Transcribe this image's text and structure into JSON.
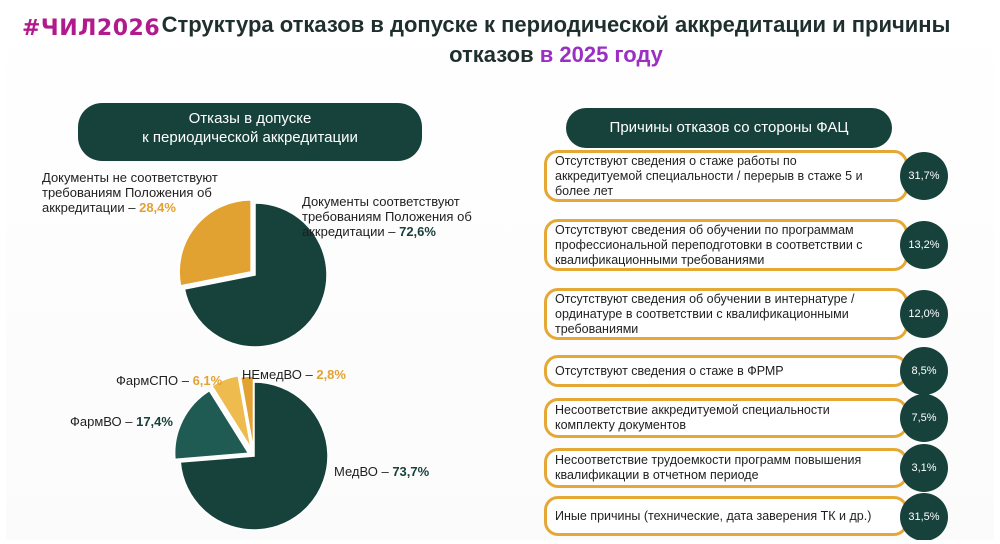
{
  "brand": "#ЧИЛ2026",
  "title": {
    "line1": "Структура отказов в допуске к периодической аккредитации и причины",
    "line2_main": "отказов",
    "line2_highlight": "в 2025 году"
  },
  "left_header": {
    "line1": "Отказы в допуске",
    "line2": "к периодической аккредитации"
  },
  "right_header": "Причины отказов со стороны ФАЦ",
  "colors": {
    "green": "#17423c",
    "orange": "#e2a232",
    "teal": "#1f5a53",
    "yellow": "#edbb4e",
    "brand": "#b11a8c",
    "highlight": "#9b2fc4",
    "border": "#e6a834"
  },
  "chart_data": [
    {
      "type": "pie",
      "slices": [
        {
          "name": "Документы соответствуют требованиям Положения об аккредитации",
          "label_text_1": "Документы соответствуют",
          "label_text_2": "требованиям Положения об",
          "label_text_3": "аккредитации – ",
          "value": 72.6,
          "value_text": "72,6%",
          "color": "#17423c"
        },
        {
          "name": "Документы не соответствуют требованиям Положения об аккредитации",
          "label_text_1": "Документы не соответствуют",
          "label_text_2": "требованиям Положения об",
          "label_text_3": "аккредитации – ",
          "value": 28.4,
          "value_text": "28,4%",
          "color": "#e2a232"
        }
      ]
    },
    {
      "type": "pie",
      "slices": [
        {
          "name": "МедВО",
          "label_text": "МедВО – ",
          "value": 73.7,
          "value_text": "73,7%",
          "color": "#17423c"
        },
        {
          "name": "ФармВО",
          "label_text": "ФармВО – ",
          "value": 17.4,
          "value_text": "17,4%",
          "color": "#1f5a53"
        },
        {
          "name": "ФармСПО",
          "label_text": "ФармСПО – ",
          "value": 6.1,
          "value_text": "6,1%",
          "color": "#edbb4e"
        },
        {
          "name": "НЕмедВО",
          "label_text": "НЕмедВО – ",
          "value": 2.8,
          "value_text": "2,8%",
          "color": "#e2a232"
        }
      ]
    },
    {
      "type": "table",
      "title": "Причины отказов со стороны ФАЦ",
      "rows": [
        {
          "text": "Отсутствуют сведения о стаже работы по аккредитуемой специальности / перерыв в стаже 5 и более лет",
          "value": 31.7,
          "value_text": "31,7%"
        },
        {
          "text": "Отсутствуют сведения об обучении по программам профессиональной переподготовки в соответствии с квалификационными требованиями",
          "value": 13.2,
          "value_text": "13,2%"
        },
        {
          "text": "Отсутствуют сведения об обучении в интернатуре / ординатуре в соответствии с квалификационными требованиями",
          "value": 12.0,
          "value_text": "12,0%"
        },
        {
          "text": "Отсутствуют сведения о стаже в ФРМР",
          "value": 8.5,
          "value_text": "8,5%"
        },
        {
          "text": "Несоответствие аккредитуемой специальности комплекту документов",
          "value": 7.5,
          "value_text": "7,5%"
        },
        {
          "text": "Несоответствие трудоемкости программ повышения квалификации в отчетном периоде",
          "value": 3.1,
          "value_text": "3,1%"
        },
        {
          "text": "Иные причины (технические, дата заверения ТК и др.)",
          "value": 31.5,
          "value_text": "31,5%"
        }
      ]
    }
  ]
}
